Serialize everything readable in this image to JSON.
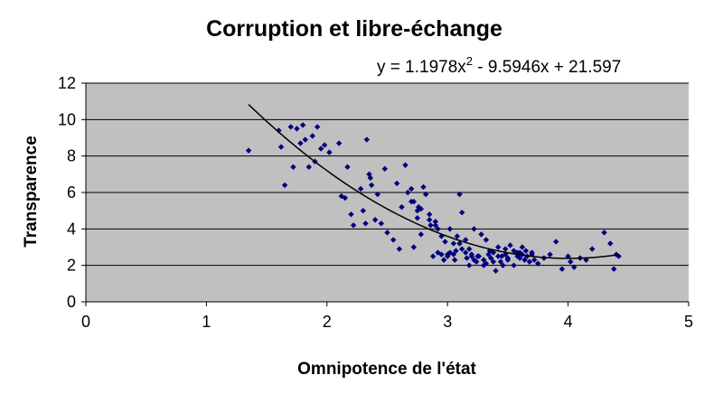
{
  "chart_data": {
    "type": "scatter",
    "title": "Corruption et libre-échange",
    "equation": {
      "prefix": "y = 1.1978x",
      "exponent": "2",
      "suffix": " - 9.5946x + 21.597"
    },
    "xlabel": "Omnipotence de l'état",
    "ylabel": "Transparence",
    "xlim": [
      0,
      5
    ],
    "ylim": [
      0,
      12
    ],
    "x_ticks": [
      0,
      1,
      2,
      3,
      4,
      5
    ],
    "y_ticks": [
      0,
      2,
      4,
      6,
      8,
      10,
      12
    ],
    "grid": "horizontal",
    "legend": "none",
    "colors": {
      "plot_area": "#c0c0c0",
      "points": "#000080",
      "trendline": "#000000",
      "gridlines": "#000000"
    },
    "trendline": {
      "type": "polynomial",
      "degree": 2,
      "coefficients": [
        1.1978,
        -9.5946,
        21.597
      ],
      "x_range": [
        1.35,
        4.42
      ]
    },
    "series": [
      {
        "points": [
          [
            1.35,
            8.3
          ],
          [
            1.6,
            9.4
          ],
          [
            1.62,
            8.5
          ],
          [
            1.65,
            6.4
          ],
          [
            1.7,
            9.6
          ],
          [
            1.72,
            7.4
          ],
          [
            1.75,
            9.5
          ],
          [
            1.78,
            8.7
          ],
          [
            1.8,
            9.7
          ],
          [
            1.82,
            8.9
          ],
          [
            1.85,
            7.4
          ],
          [
            1.88,
            9.1
          ],
          [
            1.9,
            7.7
          ],
          [
            1.92,
            9.6
          ],
          [
            1.95,
            8.4
          ],
          [
            1.98,
            8.6
          ],
          [
            2.02,
            8.2
          ],
          [
            2.1,
            8.7
          ],
          [
            2.12,
            5.8
          ],
          [
            2.15,
            5.7
          ],
          [
            2.17,
            7.4
          ],
          [
            2.2,
            4.8
          ],
          [
            2.22,
            4.2
          ],
          [
            2.28,
            6.2
          ],
          [
            2.3,
            5.0
          ],
          [
            2.32,
            4.3
          ],
          [
            2.33,
            8.9
          ],
          [
            2.35,
            7.0
          ],
          [
            2.36,
            6.8
          ],
          [
            2.37,
            6.4
          ],
          [
            2.4,
            4.5
          ],
          [
            2.42,
            5.9
          ],
          [
            2.45,
            4.3
          ],
          [
            2.48,
            7.3
          ],
          [
            2.5,
            3.8
          ],
          [
            2.55,
            3.4
          ],
          [
            2.58,
            6.5
          ],
          [
            2.6,
            2.9
          ],
          [
            2.62,
            5.2
          ],
          [
            2.65,
            7.5
          ],
          [
            2.67,
            6.0
          ],
          [
            2.7,
            6.2
          ],
          [
            2.72,
            3.0
          ],
          [
            2.75,
            4.6
          ],
          [
            2.78,
            3.7
          ],
          [
            2.8,
            6.3
          ],
          [
            2.82,
            5.9
          ],
          [
            2.85,
            4.8
          ],
          [
            2.88,
            2.5
          ],
          [
            2.9,
            4.2
          ],
          [
            2.92,
            2.7
          ],
          [
            2.95,
            3.6
          ],
          [
            2.98,
            3.3
          ],
          [
            3.0,
            2.6
          ],
          [
            3.02,
            4.0
          ],
          [
            3.05,
            3.2
          ],
          [
            3.07,
            2.8
          ],
          [
            3.1,
            5.9
          ],
          [
            3.12,
            4.9
          ],
          [
            3.15,
            3.4
          ],
          [
            3.18,
            2.9
          ],
          [
            3.2,
            2.6
          ],
          [
            3.22,
            4.0
          ],
          [
            3.25,
            2.5
          ],
          [
            3.28,
            3.7
          ],
          [
            3.3,
            2.0
          ],
          [
            3.32,
            3.4
          ],
          [
            3.35,
            2.8
          ],
          [
            3.38,
            2.2
          ],
          [
            3.4,
            1.7
          ],
          [
            3.42,
            3.0
          ],
          [
            3.45,
            2.5
          ],
          [
            3.48,
            2.9
          ],
          [
            3.5,
            2.3
          ],
          [
            3.52,
            3.1
          ],
          [
            3.55,
            2.0
          ],
          [
            3.58,
            2.7
          ],
          [
            3.6,
            2.4
          ],
          [
            3.62,
            3.0
          ],
          [
            3.65,
            2.8
          ],
          [
            3.68,
            2.2
          ],
          [
            3.7,
            2.6
          ],
          [
            3.75,
            2.1
          ],
          [
            3.8,
            2.4
          ],
          [
            3.85,
            2.6
          ],
          [
            3.9,
            3.3
          ],
          [
            3.95,
            1.8
          ],
          [
            4.0,
            2.5
          ],
          [
            4.02,
            2.2
          ],
          [
            4.05,
            1.9
          ],
          [
            4.1,
            2.4
          ],
          [
            4.15,
            2.3
          ],
          [
            4.2,
            2.9
          ],
          [
            4.3,
            3.8
          ],
          [
            4.35,
            3.2
          ],
          [
            4.38,
            1.8
          ],
          [
            4.4,
            2.6
          ],
          [
            4.42,
            2.5
          ],
          [
            2.7,
            5.5
          ],
          [
            2.72,
            5.5
          ],
          [
            2.75,
            5.0
          ],
          [
            2.76,
            5.2
          ],
          [
            2.78,
            5.1
          ],
          [
            2.85,
            4.5
          ],
          [
            2.86,
            4.2
          ],
          [
            2.9,
            4.4
          ],
          [
            2.92,
            4.0
          ],
          [
            2.95,
            2.6
          ],
          [
            2.97,
            2.3
          ],
          [
            3.0,
            2.5
          ],
          [
            3.02,
            2.7
          ],
          [
            3.05,
            2.6
          ],
          [
            3.06,
            2.3
          ],
          [
            3.08,
            3.6
          ],
          [
            3.1,
            3.2
          ],
          [
            3.12,
            2.9
          ],
          [
            3.15,
            2.7
          ],
          [
            3.16,
            2.4
          ],
          [
            3.18,
            2.0
          ],
          [
            3.2,
            2.5
          ],
          [
            3.22,
            2.3
          ],
          [
            3.24,
            2.2
          ],
          [
            3.26,
            2.5
          ],
          [
            3.3,
            2.3
          ],
          [
            3.32,
            2.1
          ],
          [
            3.34,
            2.6
          ],
          [
            3.36,
            2.4
          ],
          [
            3.38,
            2.7
          ],
          [
            3.42,
            2.5
          ],
          [
            3.44,
            2.2
          ],
          [
            3.46,
            2.0
          ],
          [
            3.48,
            2.6
          ],
          [
            3.5,
            2.4
          ],
          [
            3.55,
            2.8
          ],
          [
            3.58,
            2.5
          ],
          [
            3.6,
            2.7
          ],
          [
            3.62,
            2.6
          ],
          [
            3.64,
            2.3
          ],
          [
            3.66,
            2.5
          ],
          [
            3.7,
            2.7
          ],
          [
            3.72,
            2.3
          ]
        ]
      }
    ]
  }
}
